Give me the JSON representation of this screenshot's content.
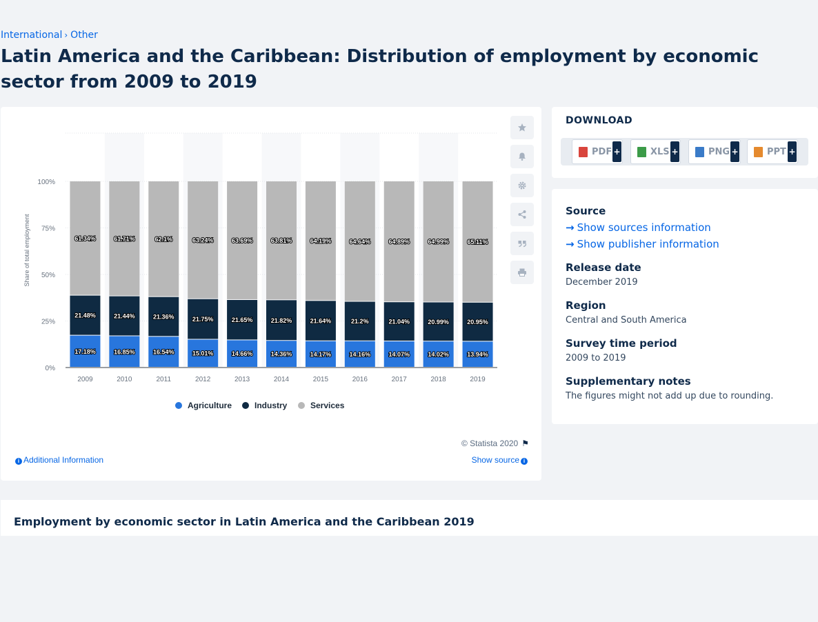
{
  "breadcrumb": {
    "items": [
      "International",
      "Other"
    ]
  },
  "page": {
    "title": "Latin America and the Caribbean: Distribution of employment by economic sector from 2009 to 2019"
  },
  "chart_card": {
    "copyright": "© Statista 2020",
    "additional_info": "Additional Information",
    "show_source": "Show source"
  },
  "toolbar": {
    "icons": [
      "star-icon",
      "bell-icon",
      "gear-icon",
      "share-icon",
      "quote-icon",
      "print-icon"
    ]
  },
  "download": {
    "title": "DOWNLOAD",
    "buttons": [
      {
        "label": "PDF",
        "color": "#d9453d"
      },
      {
        "label": "XLS",
        "color": "#3c9b48"
      },
      {
        "label": "PNG",
        "color": "#3a7bc8"
      },
      {
        "label": "PPT",
        "color": "#e58a2e"
      }
    ]
  },
  "meta": {
    "source_heading": "Source",
    "show_sources": "Show sources information",
    "show_publisher": "Show publisher information",
    "release_heading": "Release date",
    "release_value": "December 2019",
    "region_heading": "Region",
    "region_value": "Central and South America",
    "survey_heading": "Survey time period",
    "survey_value": "2009 to 2019",
    "notes_heading": "Supplementary notes",
    "notes_value": "The figures might not add up due to rounding."
  },
  "related": {
    "title": "Employment by economic sector in Latin America and the Caribbean 2019"
  },
  "chart_data": {
    "type": "bar",
    "stacked": true,
    "title": "",
    "xlabel": "",
    "ylabel": "Share of total employment",
    "ylim": [
      0,
      100
    ],
    "yticks": [
      "0%",
      "25%",
      "50%",
      "75%",
      "100%"
    ],
    "grid": true,
    "legend_position": "bottom",
    "categories": [
      "2009",
      "2010",
      "2011",
      "2012",
      "2013",
      "2014",
      "2015",
      "2016",
      "2017",
      "2018",
      "2019"
    ],
    "series": [
      {
        "name": "Agriculture",
        "color": "#2876dd",
        "values": [
          17.18,
          16.85,
          16.54,
          15.01,
          14.66,
          14.36,
          14.17,
          14.16,
          14.07,
          14.02,
          13.94
        ],
        "labels": [
          "17.18%",
          "16.85%",
          "16.54%",
          "15.01%",
          "14.66%",
          "14.36%",
          "14.17%",
          "14.16%",
          "14.07%",
          "14.02%",
          "13.94%"
        ]
      },
      {
        "name": "Industry",
        "color": "#0f2a42",
        "values": [
          21.48,
          21.44,
          21.36,
          21.75,
          21.65,
          21.82,
          21.64,
          21.2,
          21.04,
          20.99,
          20.95
        ],
        "labels": [
          "21.48%",
          "21.44%",
          "21.36%",
          "21.75%",
          "21.65%",
          "21.82%",
          "21.64%",
          "21.2%",
          "21.04%",
          "20.99%",
          "20.95%"
        ]
      },
      {
        "name": "Services",
        "color": "#b8b8b8",
        "values": [
          61.34,
          61.71,
          62.1,
          63.24,
          63.69,
          63.81,
          64.19,
          64.64,
          64.89,
          64.99,
          65.11
        ],
        "labels": [
          "61.34%",
          "61.71%",
          "62.1%",
          "63.24%",
          "63.69%",
          "63.81%",
          "64.19%",
          "64.64%",
          "64.89%",
          "64.99%",
          "65.11%"
        ]
      }
    ]
  }
}
